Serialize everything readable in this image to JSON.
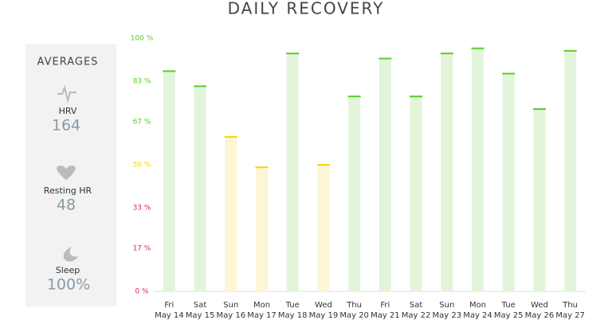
{
  "chart_data": {
    "type": "bar",
    "title": "DAILY RECOVERY",
    "categories": [
      [
        "Fri",
        "May 14"
      ],
      [
        "Sat",
        "May 15"
      ],
      [
        "Sun",
        "May 16"
      ],
      [
        "Mon",
        "May 17"
      ],
      [
        "Tue",
        "May 18"
      ],
      [
        "Wed",
        "May 19"
      ],
      [
        "Thu",
        "May 20"
      ],
      [
        "Fri",
        "May 21"
      ],
      [
        "Sat",
        "May 22"
      ],
      [
        "Sun",
        "May 23"
      ],
      [
        "Mon",
        "May 24"
      ],
      [
        "Tue",
        "May 25"
      ],
      [
        "Wed",
        "May 26"
      ],
      [
        "Thu",
        "May 27"
      ]
    ],
    "values": [
      87,
      81,
      61,
      49,
      94,
      50,
      77,
      92,
      77,
      94,
      96,
      86,
      72,
      95
    ],
    "colors": [
      "#5ccc2a",
      "#5ccc2a",
      "#f2d900",
      "#f2d900",
      "#5ccc2a",
      "#f2d900",
      "#5ccc2a",
      "#5ccc2a",
      "#5ccc2a",
      "#5ccc2a",
      "#5ccc2a",
      "#5ccc2a",
      "#5ccc2a",
      "#5ccc2a"
    ],
    "ylim": [
      0,
      100
    ],
    "yticks": [
      {
        "value": 0,
        "label": "0 %"
      },
      {
        "value": 17,
        "label": "17 %"
      },
      {
        "value": 33,
        "label": "33 %"
      },
      {
        "value": 50,
        "label": "50 %"
      },
      {
        "value": 67,
        "label": "67 %"
      },
      {
        "value": 83,
        "label": "83 %"
      },
      {
        "value": 100,
        "label": "100 %"
      }
    ],
    "ytick_colors": [
      "#e0264a",
      "#e0264a",
      "#e0264a",
      "#f2d900",
      "#5ccc2a",
      "#5ccc2a",
      "#5ccc2a"
    ]
  },
  "averages": {
    "title": "AVERAGES",
    "items": [
      {
        "label": "HRV",
        "value": 164
      },
      {
        "label": "Resting HR",
        "value": 48
      },
      {
        "label": "Sleep",
        "value": "100%"
      }
    ]
  }
}
